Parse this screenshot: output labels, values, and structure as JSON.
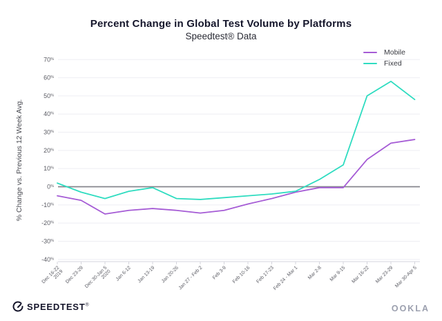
{
  "page": {
    "title": "Percent Change in Global Test Volume by Platforms",
    "subtitle": "Speedtest® Data"
  },
  "y_axis_title": "% Change vs. Previous 12 Week Avg.",
  "footer": {
    "brand": "SPEEDTEST",
    "brand_mark": "®",
    "logo": "OOKLA"
  },
  "colors": {
    "mobile": "#a55bd5",
    "fixed": "#2edcc0",
    "zero_line": "#85858c",
    "gridline": "#eeeef3",
    "axis_line": "#d4d4dc",
    "tick_label": "#5a5b63"
  },
  "chart_data": {
    "type": "line",
    "title": "Percent Change in Global Test Volume by Platforms",
    "subtitle": "Speedtest® Data",
    "xlabel": "",
    "ylabel": "% Change vs. Previous 12 Week Avg.",
    "ylim": [
      -40,
      70
    ],
    "yticks": [
      70,
      60,
      50,
      40,
      30,
      20,
      10,
      0,
      -10,
      -20,
      -30,
      -40
    ],
    "ytick_suffix": "%",
    "grid": true,
    "zero_line": true,
    "legend_position": "top-right",
    "categories": [
      "Dec 16-22\n2019",
      "Dec 23-29",
      "Dec 30-Jan 5\n2020",
      "Jan 6-12",
      "Jan 13-19",
      "Jan 20-26",
      "Jan 27 - Feb 2",
      "Feb 3-9",
      "Feb 10-16",
      "Feb 17-23",
      "Feb 24 - Mar 1",
      "Mar 2-8",
      "Mar 9-15",
      "Mar 16-22",
      "Mar 23-29",
      "Mar 30-Apr 5"
    ],
    "series": [
      {
        "name": "Mobile",
        "color": "#a55bd5",
        "values": [
          -5,
          -7.5,
          -15,
          -13,
          -12,
          -13,
          -14.5,
          -13,
          -9.5,
          -6.5,
          -3,
          -0.5,
          -0.5,
          15,
          24,
          26
        ]
      },
      {
        "name": "Fixed",
        "color": "#2edcc0",
        "values": [
          2,
          -3,
          -6.5,
          -2.5,
          -0.5,
          -6.5,
          -7,
          -6,
          -5,
          -4,
          -2.5,
          4,
          12,
          50,
          58,
          48
        ]
      }
    ]
  }
}
